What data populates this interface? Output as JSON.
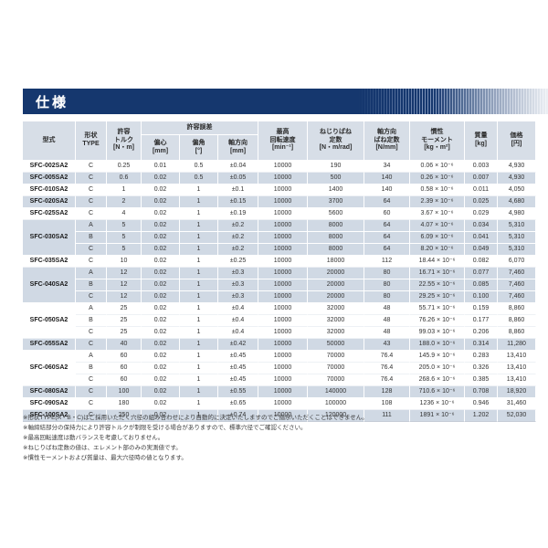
{
  "page_title": "仕様",
  "table": {
    "headers": {
      "model": "型式",
      "type": "形状\nTYPE",
      "torque": "許容\nトルク\n[N・m]",
      "tolerance_group": "許容誤差",
      "eccentricity": "偏心\n[mm]",
      "angle": "偏角\n[°]",
      "axial": "軸方向\n[mm]",
      "speed": "最高\n回転速度\n[min⁻¹]",
      "torsional_spring": "ねじりばね\n定数\n[N・m/rad]",
      "axial_spring": "軸方向\nばね定数\n[N/mm]",
      "inertia": "慣性\nモーメント\n[kg・m²]",
      "mass": "質量\n[kg]",
      "price": "価格\n[円]"
    },
    "groups": [
      {
        "model": "SFC-002SA2",
        "shaded": false,
        "rows": [
          {
            "type": "C",
            "torque": "0.25",
            "ecc": "0.01",
            "ang": "0.5",
            "axial": "±0.04",
            "speed": "10000",
            "torsion": "190",
            "axial_spring": "34",
            "inertia": "0.06 × 10⁻⁶",
            "mass": "0.003",
            "price": "4,930"
          }
        ]
      },
      {
        "model": "SFC-005SA2",
        "shaded": true,
        "rows": [
          {
            "type": "C",
            "torque": "0.6",
            "ecc": "0.02",
            "ang": "0.5",
            "axial": "±0.05",
            "speed": "10000",
            "torsion": "500",
            "axial_spring": "140",
            "inertia": "0.26 × 10⁻⁶",
            "mass": "0.007",
            "price": "4,930"
          }
        ]
      },
      {
        "model": "SFC-010SA2",
        "shaded": false,
        "rows": [
          {
            "type": "C",
            "torque": "1",
            "ecc": "0.02",
            "ang": "1",
            "axial": "±0.1",
            "speed": "10000",
            "torsion": "1400",
            "axial_spring": "140",
            "inertia": "0.58 × 10⁻⁶",
            "mass": "0.011",
            "price": "4,050"
          }
        ]
      },
      {
        "model": "SFC-020SA2",
        "shaded": true,
        "rows": [
          {
            "type": "C",
            "torque": "2",
            "ecc": "0.02",
            "ang": "1",
            "axial": "±0.15",
            "speed": "10000",
            "torsion": "3700",
            "axial_spring": "64",
            "inertia": "2.39 × 10⁻⁶",
            "mass": "0.025",
            "price": "4,680"
          }
        ]
      },
      {
        "model": "SFC-025SA2",
        "shaded": false,
        "rows": [
          {
            "type": "C",
            "torque": "4",
            "ecc": "0.02",
            "ang": "1",
            "axial": "±0.19",
            "speed": "10000",
            "torsion": "5600",
            "axial_spring": "60",
            "inertia": "3.67 × 10⁻⁶",
            "mass": "0.029",
            "price": "4,980"
          }
        ]
      },
      {
        "model": "SFC-030SA2",
        "shaded": true,
        "rows": [
          {
            "type": "A",
            "torque": "5",
            "ecc": "0.02",
            "ang": "1",
            "axial": "±0.2",
            "speed": "10000",
            "torsion": "8000",
            "axial_spring": "64",
            "inertia": "4.07 × 10⁻⁶",
            "mass": "0.034",
            "price": "5,310"
          },
          {
            "type": "B",
            "torque": "5",
            "ecc": "0.02",
            "ang": "1",
            "axial": "±0.2",
            "speed": "10000",
            "torsion": "8000",
            "axial_spring": "64",
            "inertia": "6.09 × 10⁻⁶",
            "mass": "0.041",
            "price": "5,310"
          },
          {
            "type": "C",
            "torque": "5",
            "ecc": "0.02",
            "ang": "1",
            "axial": "±0.2",
            "speed": "10000",
            "torsion": "8000",
            "axial_spring": "64",
            "inertia": "8.20 × 10⁻⁶",
            "mass": "0.049",
            "price": "5,310"
          }
        ]
      },
      {
        "model": "SFC-035SA2",
        "shaded": false,
        "rows": [
          {
            "type": "C",
            "torque": "10",
            "ecc": "0.02",
            "ang": "1",
            "axial": "±0.25",
            "speed": "10000",
            "torsion": "18000",
            "axial_spring": "112",
            "inertia": "18.44 × 10⁻⁶",
            "mass": "0.082",
            "price": "6,070"
          }
        ]
      },
      {
        "model": "SFC-040SA2",
        "shaded": true,
        "rows": [
          {
            "type": "A",
            "torque": "12",
            "ecc": "0.02",
            "ang": "1",
            "axial": "±0.3",
            "speed": "10000",
            "torsion": "20000",
            "axial_spring": "80",
            "inertia": "16.71 × 10⁻⁶",
            "mass": "0.077",
            "price": "7,460"
          },
          {
            "type": "B",
            "torque": "12",
            "ecc": "0.02",
            "ang": "1",
            "axial": "±0.3",
            "speed": "10000",
            "torsion": "20000",
            "axial_spring": "80",
            "inertia": "22.55 × 10⁻⁶",
            "mass": "0.085",
            "price": "7,460"
          },
          {
            "type": "C",
            "torque": "12",
            "ecc": "0.02",
            "ang": "1",
            "axial": "±0.3",
            "speed": "10000",
            "torsion": "20000",
            "axial_spring": "80",
            "inertia": "29.25 × 10⁻⁶",
            "mass": "0.100",
            "price": "7,460"
          }
        ]
      },
      {
        "model": "SFC-050SA2",
        "shaded": false,
        "rows": [
          {
            "type": "A",
            "torque": "25",
            "ecc": "0.02",
            "ang": "1",
            "axial": "±0.4",
            "speed": "10000",
            "torsion": "32000",
            "axial_spring": "48",
            "inertia": "55.71 × 10⁻⁶",
            "mass": "0.159",
            "price": "8,860"
          },
          {
            "type": "B",
            "torque": "25",
            "ecc": "0.02",
            "ang": "1",
            "axial": "±0.4",
            "speed": "10000",
            "torsion": "32000",
            "axial_spring": "48",
            "inertia": "76.26 × 10⁻⁶",
            "mass": "0.177",
            "price": "8,860"
          },
          {
            "type": "C",
            "torque": "25",
            "ecc": "0.02",
            "ang": "1",
            "axial": "±0.4",
            "speed": "10000",
            "torsion": "32000",
            "axial_spring": "48",
            "inertia": "99.03 × 10⁻⁶",
            "mass": "0.206",
            "price": "8,860"
          }
        ]
      },
      {
        "model": "SFC-055SA2",
        "shaded": true,
        "rows": [
          {
            "type": "C",
            "torque": "40",
            "ecc": "0.02",
            "ang": "1",
            "axial": "±0.42",
            "speed": "10000",
            "torsion": "50000",
            "axial_spring": "43",
            "inertia": "188.0 × 10⁻⁶",
            "mass": "0.314",
            "price": "11,280"
          }
        ]
      },
      {
        "model": "SFC-060SA2",
        "shaded": false,
        "rows": [
          {
            "type": "A",
            "torque": "60",
            "ecc": "0.02",
            "ang": "1",
            "axial": "±0.45",
            "speed": "10000",
            "torsion": "70000",
            "axial_spring": "76.4",
            "inertia": "145.9 × 10⁻⁶",
            "mass": "0.283",
            "price": "13,410"
          },
          {
            "type": "B",
            "torque": "60",
            "ecc": "0.02",
            "ang": "1",
            "axial": "±0.45",
            "speed": "10000",
            "torsion": "70000",
            "axial_spring": "76.4",
            "inertia": "205.0 × 10⁻⁶",
            "mass": "0.326",
            "price": "13,410"
          },
          {
            "type": "C",
            "torque": "60",
            "ecc": "0.02",
            "ang": "1",
            "axial": "±0.45",
            "speed": "10000",
            "torsion": "70000",
            "axial_spring": "76.4",
            "inertia": "268.6 × 10⁻⁶",
            "mass": "0.385",
            "price": "13,410"
          }
        ]
      },
      {
        "model": "SFC-080SA2",
        "shaded": true,
        "rows": [
          {
            "type": "C",
            "torque": "100",
            "ecc": "0.02",
            "ang": "1",
            "axial": "±0.55",
            "speed": "10000",
            "torsion": "140000",
            "axial_spring": "128",
            "inertia": "710.6 × 10⁻⁶",
            "mass": "0.708",
            "price": "18,920"
          }
        ]
      },
      {
        "model": "SFC-090SA2",
        "shaded": false,
        "rows": [
          {
            "type": "C",
            "torque": "180",
            "ecc": "0.02",
            "ang": "1",
            "axial": "±0.65",
            "speed": "10000",
            "torsion": "100000",
            "axial_spring": "108",
            "inertia": "1236 × 10⁻⁶",
            "mass": "0.946",
            "price": "31,460"
          }
        ]
      },
      {
        "model": "SFC-100SA2",
        "shaded": true,
        "rows": [
          {
            "type": "C",
            "torque": "250",
            "ecc": "0.02",
            "ang": "1",
            "axial": "±0.74",
            "speed": "10000",
            "torsion": "120000",
            "axial_spring": "111",
            "inertia": "1891 × 10⁻⁶",
            "mass": "1.202",
            "price": "52,030"
          }
        ]
      }
    ]
  },
  "footnotes": [
    "※形状TYPE(A・B・C)はご採用いただく穴径の組み合わせにより自動的に決定いたしますのでご指示いただくことはできません。",
    "※軸締結部分の保持力により許容トルクが制限を受ける場合がありますので、標準穴径でご確認ください。",
    "※最高回転速度は動バランスを考慮しておりません。",
    "※ねじりばね定数の値は、エレメント部のみの実測値です。",
    "※慣性モーメントおよび質量は、最大穴径時の値となります。"
  ],
  "colors": {
    "band_navy": "#15376e",
    "header_bg": "#d7dee7",
    "row_shaded": "#d0d9e4",
    "row_plain": "#ffffff"
  }
}
